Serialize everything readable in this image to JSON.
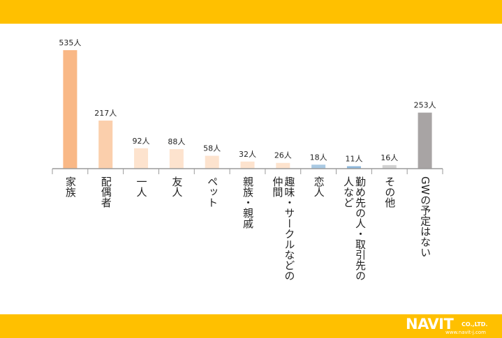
{
  "chart_data": {
    "type": "bar",
    "categories": [
      "家族",
      "配偶者",
      "一人",
      "友人",
      "ペット",
      "親族・親戚",
      "趣味・サークルなどの仲間",
      "恋人",
      "勤め先の人・取引先の人など",
      "その他",
      "GWの予定はない"
    ],
    "category_lines": [
      [
        "家族"
      ],
      [
        "配偶者"
      ],
      [
        "一人"
      ],
      [
        "友人"
      ],
      [
        "ペット"
      ],
      [
        "親族・親戚"
      ],
      [
        "趣味・サークルなどの",
        "仲間"
      ],
      [
        "恋人"
      ],
      [
        "勤め先の人・取引先の",
        "人など"
      ],
      [
        "その他"
      ],
      [
        "GWの予定はない"
      ]
    ],
    "values": [
      535,
      217,
      92,
      88,
      58,
      32,
      26,
      18,
      11,
      16,
      253
    ],
    "value_labels": [
      "535人",
      "217人",
      "92人",
      "88人",
      "58人",
      "32人",
      "26人",
      "18人",
      "11人",
      "16人",
      "253人"
    ],
    "colors": [
      "#F9B886",
      "#FBCFAC",
      "#FDE3CE",
      "#FDE3CE",
      "#FDE3CE",
      "#FDE3CE",
      "#FDE3CE",
      "#A9C9E3",
      "#8FB8DC",
      "#D2D2D2",
      "#A8A4A4"
    ],
    "ylim": [
      0,
      535
    ],
    "grid": false,
    "legend": "none"
  },
  "brand": {
    "logo_text": "NAVIT",
    "logo_suffix": "CO.,LTD.",
    "url": "www.navit-j.com",
    "band_color": "#FFC000"
  }
}
